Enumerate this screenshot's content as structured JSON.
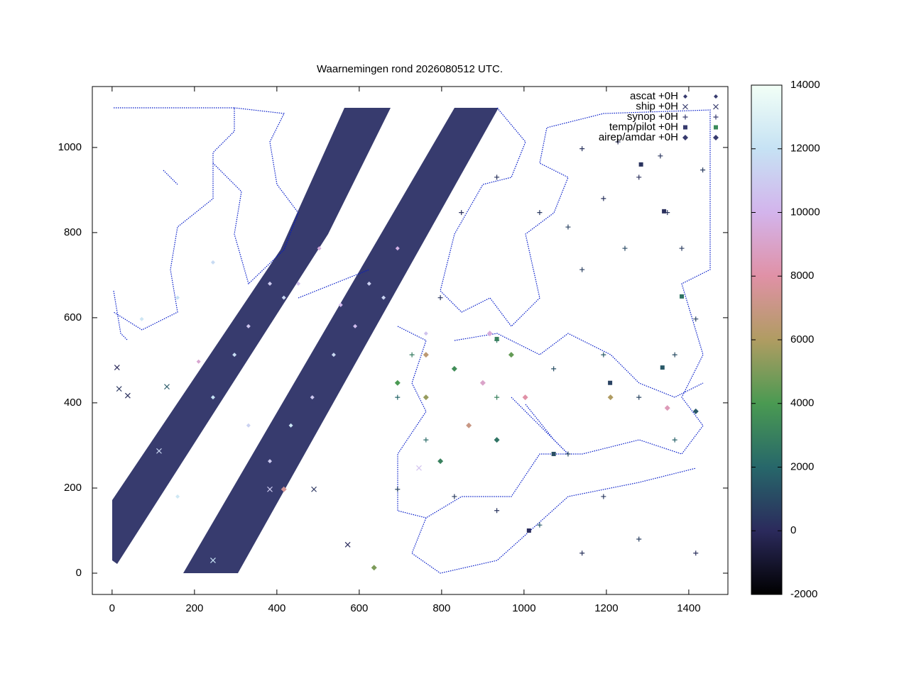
{
  "chart_data": {
    "type": "scatter",
    "title": "Waarnemingen rond 2026080512 UTC.",
    "xlim": [
      -48,
      1495
    ],
    "ylim": [
      -50,
      1143
    ],
    "xticks": [
      0,
      200,
      400,
      600,
      800,
      1000,
      1200,
      1400
    ],
    "yticks": [
      0,
      200,
      400,
      600,
      800,
      1000
    ],
    "colorbar": {
      "lim": [
        -2000,
        14000
      ],
      "ticks": [
        -2000,
        0,
        2000,
        4000,
        6000,
        8000,
        10000,
        12000,
        14000
      ],
      "stops": [
        "#000000",
        "#2b2a5c",
        "#27676a",
        "#4a9a52",
        "#b09c62",
        "#e091a6",
        "#d3b4ec",
        "#c6e2f4",
        "#f2fff6"
      ]
    },
    "legend": "top-right",
    "series": [
      {
        "name": "ascat +0H",
        "marker": "dot",
        "x": [
          383,
          417,
          452,
          297,
          245,
          331,
          503,
          624,
          590,
          538,
          486,
          434,
          383,
          693,
          659,
          159,
          245,
          72,
          159,
          555,
          762,
          210,
          331
        ],
        "y": [
          680,
          647,
          680,
          513,
          413,
          580,
          763,
          680,
          580,
          513,
          413,
          347,
          263,
          763,
          647,
          180,
          730,
          597,
          647,
          630,
          563,
          497,
          347
        ],
        "c": [
          11000,
          11500,
          10500,
          11800,
          12000,
          10800,
          9500,
          11200,
          10400,
          11600,
          10900,
          12200,
          11000,
          9800,
          11400,
          12400,
          11700,
          12300,
          11900,
          10200,
          10600,
          9200,
          11300
        ]
      },
      {
        "name": "ship +0H",
        "marker": "cross",
        "x": [
          12,
          38,
          133,
          490,
          572,
          383,
          245,
          114,
          745,
          17
        ],
        "y": [
          483,
          417,
          438,
          197,
          67,
          197,
          30,
          287,
          247,
          433
        ],
        "c": [
          0,
          200,
          1500,
          300,
          100,
          11000,
          12000,
          11500,
          10500,
          400
        ]
      },
      {
        "name": "synop +0H",
        "marker": "plus",
        "x": [
          1038,
          1107,
          1193,
          1279,
          1348,
          1245,
          1141,
          1383,
          934,
          848,
          797,
          934,
          1072,
          1193,
          1279,
          1366,
          1417,
          762,
          831,
          934,
          1038,
          1141,
          1193,
          1279,
          693,
          1417,
          1366,
          1107,
          934,
          1141,
          1228,
          1331,
          1434,
          693,
          728
        ],
        "y": [
          847,
          813,
          880,
          930,
          847,
          763,
          713,
          763,
          930,
          847,
          647,
          547,
          480,
          513,
          413,
          513,
          597,
          313,
          180,
          147,
          113,
          47,
          180,
          80,
          197,
          47,
          313,
          280,
          413,
          997,
          1013,
          980,
          947,
          413,
          513
        ],
        "c": [
          500,
          800,
          300,
          200,
          400,
          1000,
          700,
          600,
          300,
          200,
          400,
          2500,
          1200,
          1500,
          900,
          1100,
          800,
          2200,
          600,
          400,
          1500,
          300,
          500,
          700,
          900,
          200,
          1800,
          1000,
          3000,
          300,
          200,
          400,
          600,
          2000,
          2800
        ]
      },
      {
        "name": "temp/pilot +0H",
        "marker": "square",
        "x": [
          1340,
          1284,
          1336,
          1383,
          1012,
          1209,
          1072,
          934
        ],
        "y": [
          850,
          960,
          483,
          650,
          100,
          447,
          280,
          550
        ],
        "c": [
          200,
          300,
          1500,
          2500,
          100,
          800,
          1200,
          3000
        ]
      },
      {
        "name": "airep/amdar +0H",
        "marker": "diamond",
        "x": [
          762,
          831,
          900,
          969,
          866,
          934,
          762,
          1003,
          797,
          1210,
          1348,
          1417,
          636,
          417,
          693,
          917
        ],
        "y": [
          513,
          480,
          447,
          513,
          347,
          313,
          413,
          413,
          263,
          413,
          388,
          380,
          13,
          197,
          447,
          563
        ],
        "c": [
          6500,
          3500,
          9000,
          4500,
          7000,
          2500,
          5500,
          8000,
          3000,
          6000,
          8500,
          1500,
          5000,
          7500,
          4000,
          9500
        ]
      }
    ]
  }
}
